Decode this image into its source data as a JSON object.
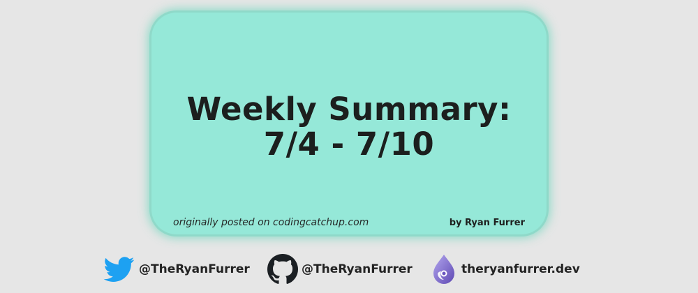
{
  "card": {
    "title_line1": "Weekly Summary:",
    "title_line2": "7/4 - 7/10",
    "posted": "originally posted on codingcatchup.com",
    "byline": "by Ryan Furrer"
  },
  "socials": [
    {
      "icon": "twitter-bird-icon",
      "label": "@TheRyanFurrer",
      "color": "#1da1f2"
    },
    {
      "icon": "github-octocat-icon",
      "label": "@TheRyanFurrer",
      "color": "#1b1f23"
    },
    {
      "icon": "hashnode-drop-icon",
      "label": "theryanfurrer.dev",
      "color": "#7b68c8"
    }
  ],
  "colors": {
    "background": "#e6e6e6",
    "card": "#95e8d8",
    "text": "#1c1f1e"
  }
}
